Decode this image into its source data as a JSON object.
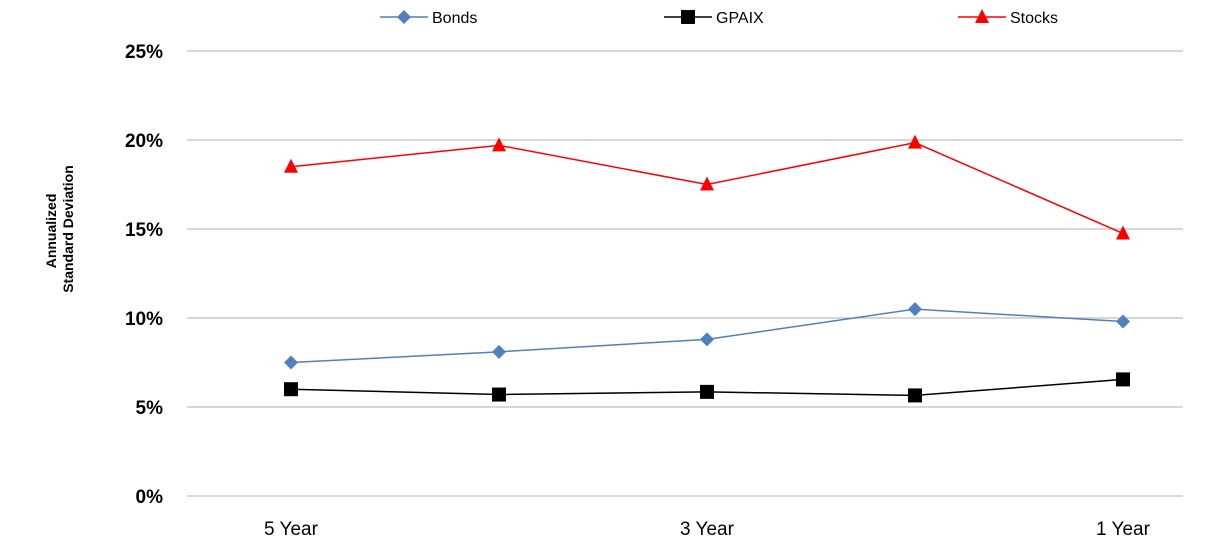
{
  "chart_data": {
    "type": "line",
    "categories": [
      "5 Year",
      "",
      "3 Year",
      "",
      "1 Year"
    ],
    "x_tick_labels": [
      "5 Year",
      "3 Year",
      "1 Year"
    ],
    "ylabel_lines": [
      "Annualized",
      "Standard Deviation"
    ],
    "ylim": [
      0,
      25
    ],
    "y_ticks": [
      0,
      5,
      10,
      15,
      20,
      25
    ],
    "y_tick_labels": [
      "0%",
      "5%",
      "10%",
      "15%",
      "20%",
      "25%"
    ],
    "grid": true,
    "legend": "top",
    "series": [
      {
        "name": "Bonds",
        "values": [
          7.5,
          8.1,
          8.8,
          10.5,
          9.8
        ],
        "color": "#4f81bd",
        "marker": "diamond"
      },
      {
        "name": "GPAIX",
        "values": [
          6.0,
          5.7,
          5.85,
          5.65,
          6.55
        ],
        "color": "#000000",
        "marker": "square"
      },
      {
        "name": "Stocks",
        "values": [
          18.5,
          19.7,
          17.5,
          19.85,
          14.75
        ],
        "color": "#ff0000",
        "marker": "triangle"
      }
    ]
  }
}
